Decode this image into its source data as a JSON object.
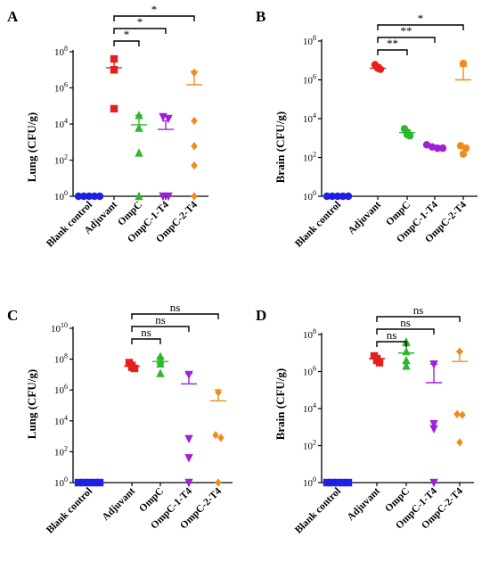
{
  "panels": [
    {
      "letter": "A",
      "ylabel": "Lung (CFU/g)",
      "ytick_exponents": [
        0,
        2,
        4,
        6,
        8
      ]
    },
    {
      "letter": "B",
      "ylabel": "Brain (CFU/g)",
      "ytick_exponents": [
        0,
        2,
        4,
        6,
        8
      ]
    },
    {
      "letter": "C",
      "ylabel": "Lung (CFU/g)",
      "ytick_exponents": [
        0,
        2,
        4,
        6,
        8,
        10
      ]
    },
    {
      "letter": "D",
      "ylabel": "Brain (CFU/g)",
      "ytick_exponents": [
        0,
        2,
        4,
        6,
        8
      ]
    }
  ],
  "chart_data": [
    {
      "type": "scatter",
      "ylabel": "Lung (CFU/g)",
      "yscale": "log",
      "ylim": [
        1,
        100000000
      ],
      "categories": [
        "Blank control",
        "Adjuvant",
        "OmpC",
        "OmpC-1-T4",
        "OmpC-2-T4"
      ],
      "series": [
        {
          "category": "Blank control",
          "color": "#1f1fe6",
          "marker": "circle",
          "points": [
            1,
            1,
            1,
            1,
            1
          ],
          "mean": 1,
          "sem_high": 1
        },
        {
          "category": "Adjuvant",
          "color": "#e61e1e",
          "marker": "square",
          "points": [
            40000000,
            10000000,
            70000
          ],
          "mean": 13000000,
          "sem_high": 35000000
        },
        {
          "category": "OmpC",
          "color": "#2db82d",
          "marker": "triangle",
          "points": [
            30000,
            6000,
            250,
            1
          ],
          "mean": 9000,
          "sem_high": 30000
        },
        {
          "category": "OmpC-1-T4",
          "color": "#a020d8",
          "marker": "triangle-down",
          "points": [
            25000,
            20000,
            1,
            1
          ],
          "mean": 5000,
          "sem_high": 15000
        },
        {
          "category": "OmpC-2-T4",
          "color": "#f08c1e",
          "marker": "diamond",
          "points": [
            7000000,
            15000,
            600,
            50,
            1
          ],
          "mean": 1500000,
          "sem_high": 8000000
        }
      ],
      "significance": [
        {
          "from": "Adjuvant",
          "to": "OmpC",
          "label": "*"
        },
        {
          "from": "Adjuvant",
          "to": "OmpC-1-T4",
          "label": "*"
        },
        {
          "from": "Adjuvant",
          "to": "OmpC-2-T4",
          "label": "*"
        }
      ]
    },
    {
      "type": "scatter",
      "ylabel": "Brain (CFU/g)",
      "yscale": "log",
      "ylim": [
        1,
        100000000
      ],
      "categories": [
        "Blank control",
        "Adjuvant",
        "OmpC",
        "OmpC-1-T4",
        "OmpC-2-T4"
      ],
      "series": [
        {
          "category": "Blank control",
          "color": "#1f1fe6",
          "marker": "circle",
          "points": [
            1,
            1,
            1,
            1,
            1
          ],
          "mean": 1,
          "sem_high": 1
        },
        {
          "category": "Adjuvant",
          "color": "#e61e1e",
          "marker": "circle",
          "points": [
            6000000,
            4000000,
            3500000
          ],
          "mean": 4000000,
          "sem_high": 6000000
        },
        {
          "category": "OmpC",
          "color": "#2db82d",
          "marker": "circle",
          "points": [
            3000,
            2000,
            1500,
            1300
          ],
          "mean": 1900,
          "sem_high": 2600
        },
        {
          "category": "OmpC-1-T4",
          "color": "#a020d8",
          "marker": "circle",
          "points": [
            450,
            350,
            300,
            300
          ],
          "mean": 350,
          "sem_high": 420
        },
        {
          "category": "OmpC-2-T4",
          "color": "#f08c1e",
          "marker": "circle",
          "points": [
            7000000,
            400,
            300,
            150
          ],
          "mean": 1000000,
          "sem_high": 5000000
        }
      ],
      "significance": [
        {
          "from": "Adjuvant",
          "to": "OmpC",
          "label": "**"
        },
        {
          "from": "Adjuvant",
          "to": "OmpC-1-T4",
          "label": "**"
        },
        {
          "from": "Adjuvant",
          "to": "OmpC-2-T4",
          "label": "*"
        }
      ]
    },
    {
      "type": "scatter",
      "ylabel": "Lung (CFU/g)",
      "yscale": "log",
      "ylim": [
        1,
        10000000000
      ],
      "categories": [
        "Blank control",
        "Adjuvant",
        "OmpC",
        "OmpC-1-T4",
        "OmpC-2-T4"
      ],
      "series": [
        {
          "category": "Blank control",
          "color": "#1f1fe6",
          "marker": "square",
          "points": [
            1,
            1,
            1,
            1,
            1
          ],
          "mean": 1,
          "sem_high": 1
        },
        {
          "category": "Adjuvant",
          "color": "#e61e1e",
          "marker": "square",
          "points": [
            60000000,
            40000000,
            30000000,
            25000000
          ],
          "mean": 35000000,
          "sem_high": 50000000
        },
        {
          "category": "OmpC",
          "color": "#2db82d",
          "marker": "triangle",
          "points": [
            150000000,
            80000000,
            50000000,
            12000000
          ],
          "mean": 70000000,
          "sem_high": 130000000
        },
        {
          "category": "OmpC-1-T4",
          "color": "#a020d8",
          "marker": "triangle-down",
          "points": [
            10000000,
            700,
            40,
            1
          ],
          "mean": 2500000,
          "sem_high": 12000000
        },
        {
          "category": "OmpC-2-T4",
          "color": "#f08c1e",
          "marker": "diamond",
          "points": [
            700000,
            1200,
            800,
            1
          ],
          "mean": 200000,
          "sem_high": 1000000
        }
      ],
      "significance": [
        {
          "from": "Adjuvant",
          "to": "OmpC",
          "label": "ns"
        },
        {
          "from": "Adjuvant",
          "to": "OmpC-1-T4",
          "label": "ns"
        },
        {
          "from": "Adjuvant",
          "to": "OmpC-2-T4",
          "label": "ns"
        }
      ]
    },
    {
      "type": "scatter",
      "ylabel": "Brain (CFU/g)",
      "yscale": "log",
      "ylim": [
        1,
        100000000
      ],
      "categories": [
        "Blank control",
        "Adjuvant",
        "OmpC",
        "OmpC-1-T4",
        "OmpC-2-T4"
      ],
      "series": [
        {
          "category": "Blank control",
          "color": "#1f1fe6",
          "marker": "square",
          "points": [
            1,
            1,
            1,
            1,
            1
          ],
          "mean": 1,
          "sem_high": 1
        },
        {
          "category": "Adjuvant",
          "color": "#e61e1e",
          "marker": "square",
          "points": [
            7000000,
            5000000,
            4000000,
            3000000
          ],
          "mean": 5000000,
          "sem_high": 7000000
        },
        {
          "category": "OmpC",
          "color": "#2db82d",
          "marker": "triangle",
          "points": [
            40000000,
            12000000,
            4000000,
            2000000
          ],
          "mean": 10000000,
          "sem_high": 25000000
        },
        {
          "category": "OmpC-1-T4",
          "color": "#a020d8",
          "marker": "triangle-down",
          "points": [
            2500000,
            1500,
            800,
            1
          ],
          "mean": 250000,
          "sem_high": 2500000
        },
        {
          "category": "OmpC-2-T4",
          "color": "#f08c1e",
          "marker": "diamond",
          "points": [
            12000000,
            5000,
            4500,
            150
          ],
          "mean": 3500000,
          "sem_high": 12000000
        }
      ],
      "significance": [
        {
          "from": "Adjuvant",
          "to": "OmpC",
          "label": "ns"
        },
        {
          "from": "Adjuvant",
          "to": "OmpC-1-T4",
          "label": "ns"
        },
        {
          "from": "Adjuvant",
          "to": "OmpC-2-T4",
          "label": "ns"
        }
      ]
    }
  ]
}
